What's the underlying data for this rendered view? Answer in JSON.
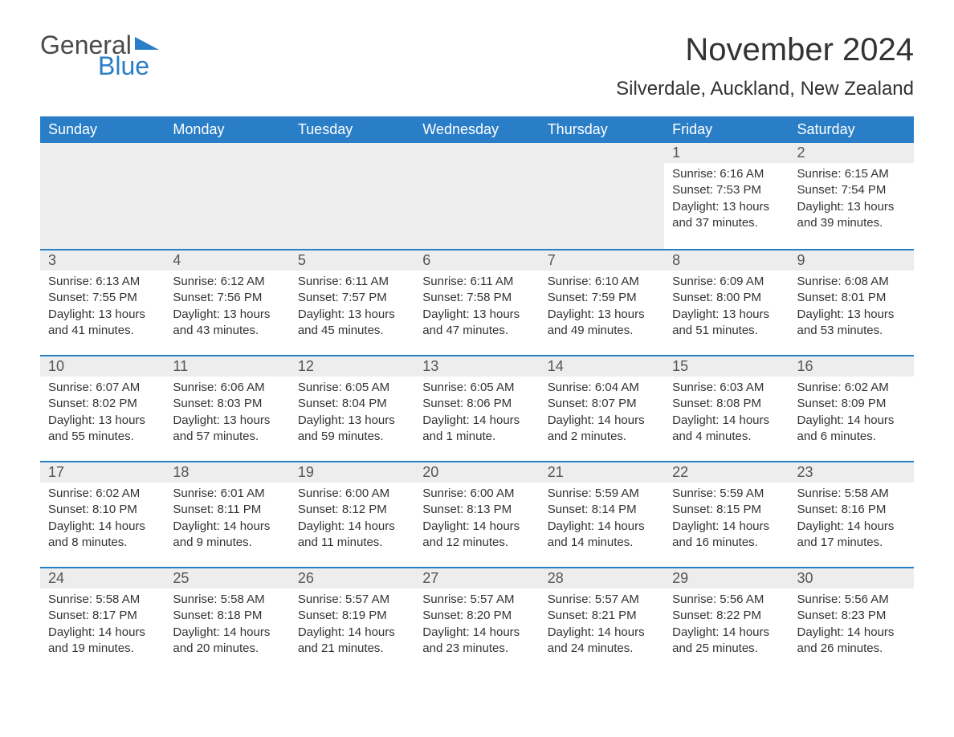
{
  "logo": {
    "general": "General",
    "blue": "Blue",
    "flag_color": "#2a7ec7"
  },
  "title": "November 2024",
  "location": "Silverdale, Auckland, New Zealand",
  "colors": {
    "header_bg": "#2a7ec7",
    "header_text": "#ffffff",
    "daynum_bg": "#ededed",
    "daynum_border": "#2a7ec7",
    "text": "#333333",
    "background": "#ffffff"
  },
  "typography": {
    "title_fontsize": 40,
    "location_fontsize": 24,
    "dayheader_fontsize": 18,
    "daynum_fontsize": 18,
    "detail_fontsize": 15,
    "font_family": "Arial"
  },
  "day_headers": [
    "Sunday",
    "Monday",
    "Tuesday",
    "Wednesday",
    "Thursday",
    "Friday",
    "Saturday"
  ],
  "weeks": [
    [
      null,
      null,
      null,
      null,
      null,
      {
        "n": "1",
        "sunrise": "6:16 AM",
        "sunset": "7:53 PM",
        "daylight": "13 hours and 37 minutes."
      },
      {
        "n": "2",
        "sunrise": "6:15 AM",
        "sunset": "7:54 PM",
        "daylight": "13 hours and 39 minutes."
      }
    ],
    [
      {
        "n": "3",
        "sunrise": "6:13 AM",
        "sunset": "7:55 PM",
        "daylight": "13 hours and 41 minutes."
      },
      {
        "n": "4",
        "sunrise": "6:12 AM",
        "sunset": "7:56 PM",
        "daylight": "13 hours and 43 minutes."
      },
      {
        "n": "5",
        "sunrise": "6:11 AM",
        "sunset": "7:57 PM",
        "daylight": "13 hours and 45 minutes."
      },
      {
        "n": "6",
        "sunrise": "6:11 AM",
        "sunset": "7:58 PM",
        "daylight": "13 hours and 47 minutes."
      },
      {
        "n": "7",
        "sunrise": "6:10 AM",
        "sunset": "7:59 PM",
        "daylight": "13 hours and 49 minutes."
      },
      {
        "n": "8",
        "sunrise": "6:09 AM",
        "sunset": "8:00 PM",
        "daylight": "13 hours and 51 minutes."
      },
      {
        "n": "9",
        "sunrise": "6:08 AM",
        "sunset": "8:01 PM",
        "daylight": "13 hours and 53 minutes."
      }
    ],
    [
      {
        "n": "10",
        "sunrise": "6:07 AM",
        "sunset": "8:02 PM",
        "daylight": "13 hours and 55 minutes."
      },
      {
        "n": "11",
        "sunrise": "6:06 AM",
        "sunset": "8:03 PM",
        "daylight": "13 hours and 57 minutes."
      },
      {
        "n": "12",
        "sunrise": "6:05 AM",
        "sunset": "8:04 PM",
        "daylight": "13 hours and 59 minutes."
      },
      {
        "n": "13",
        "sunrise": "6:05 AM",
        "sunset": "8:06 PM",
        "daylight": "14 hours and 1 minute."
      },
      {
        "n": "14",
        "sunrise": "6:04 AM",
        "sunset": "8:07 PM",
        "daylight": "14 hours and 2 minutes."
      },
      {
        "n": "15",
        "sunrise": "6:03 AM",
        "sunset": "8:08 PM",
        "daylight": "14 hours and 4 minutes."
      },
      {
        "n": "16",
        "sunrise": "6:02 AM",
        "sunset": "8:09 PM",
        "daylight": "14 hours and 6 minutes."
      }
    ],
    [
      {
        "n": "17",
        "sunrise": "6:02 AM",
        "sunset": "8:10 PM",
        "daylight": "14 hours and 8 minutes."
      },
      {
        "n": "18",
        "sunrise": "6:01 AM",
        "sunset": "8:11 PM",
        "daylight": "14 hours and 9 minutes."
      },
      {
        "n": "19",
        "sunrise": "6:00 AM",
        "sunset": "8:12 PM",
        "daylight": "14 hours and 11 minutes."
      },
      {
        "n": "20",
        "sunrise": "6:00 AM",
        "sunset": "8:13 PM",
        "daylight": "14 hours and 12 minutes."
      },
      {
        "n": "21",
        "sunrise": "5:59 AM",
        "sunset": "8:14 PM",
        "daylight": "14 hours and 14 minutes."
      },
      {
        "n": "22",
        "sunrise": "5:59 AM",
        "sunset": "8:15 PM",
        "daylight": "14 hours and 16 minutes."
      },
      {
        "n": "23",
        "sunrise": "5:58 AM",
        "sunset": "8:16 PM",
        "daylight": "14 hours and 17 minutes."
      }
    ],
    [
      {
        "n": "24",
        "sunrise": "5:58 AM",
        "sunset": "8:17 PM",
        "daylight": "14 hours and 19 minutes."
      },
      {
        "n": "25",
        "sunrise": "5:58 AM",
        "sunset": "8:18 PM",
        "daylight": "14 hours and 20 minutes."
      },
      {
        "n": "26",
        "sunrise": "5:57 AM",
        "sunset": "8:19 PM",
        "daylight": "14 hours and 21 minutes."
      },
      {
        "n": "27",
        "sunrise": "5:57 AM",
        "sunset": "8:20 PM",
        "daylight": "14 hours and 23 minutes."
      },
      {
        "n": "28",
        "sunrise": "5:57 AM",
        "sunset": "8:21 PM",
        "daylight": "14 hours and 24 minutes."
      },
      {
        "n": "29",
        "sunrise": "5:56 AM",
        "sunset": "8:22 PM",
        "daylight": "14 hours and 25 minutes."
      },
      {
        "n": "30",
        "sunrise": "5:56 AM",
        "sunset": "8:23 PM",
        "daylight": "14 hours and 26 minutes."
      }
    ]
  ],
  "labels": {
    "sunrise": "Sunrise:",
    "sunset": "Sunset:",
    "daylight": "Daylight:"
  }
}
